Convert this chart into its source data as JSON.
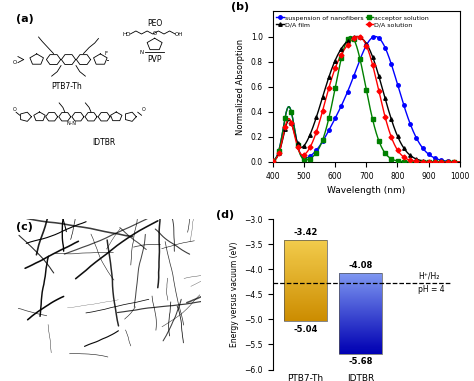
{
  "panel_b": {
    "xlabel": "Wavelength (nm)",
    "ylabel": "Normalized Absorption",
    "xlim": [
      400,
      1000
    ],
    "ylim": [
      0,
      1.2
    ],
    "yticks": [
      0.0,
      0.2,
      0.4,
      0.6,
      0.8,
      1.0
    ],
    "xticks": [
      400,
      500,
      600,
      700,
      800,
      900,
      1000
    ]
  },
  "panel_d": {
    "ylabel": "Energy versus vacuum (eV)",
    "ylim": [
      -6.0,
      -3.0
    ],
    "yticks": [
      -6.0,
      -5.5,
      -5.0,
      -4.5,
      -4.0,
      -3.5,
      -3.0
    ],
    "bars": [
      {
        "label": "PTB7-Th",
        "top": -3.42,
        "bottom": -5.04
      },
      {
        "label": "IDTBR",
        "top": -4.08,
        "bottom": -5.68
      }
    ],
    "dashed_line_y": -4.27,
    "annotations": [
      {
        "text": "-3.42",
        "xi": 0,
        "y": -3.42,
        "va": "bottom"
      },
      {
        "text": "-5.04",
        "xi": 0,
        "y": -5.04,
        "va": "top"
      },
      {
        "text": "-4.08",
        "xi": 1,
        "y": -4.08,
        "va": "bottom"
      },
      {
        "text": "-5.68",
        "xi": 1,
        "y": -5.68,
        "va": "top"
      }
    ]
  }
}
